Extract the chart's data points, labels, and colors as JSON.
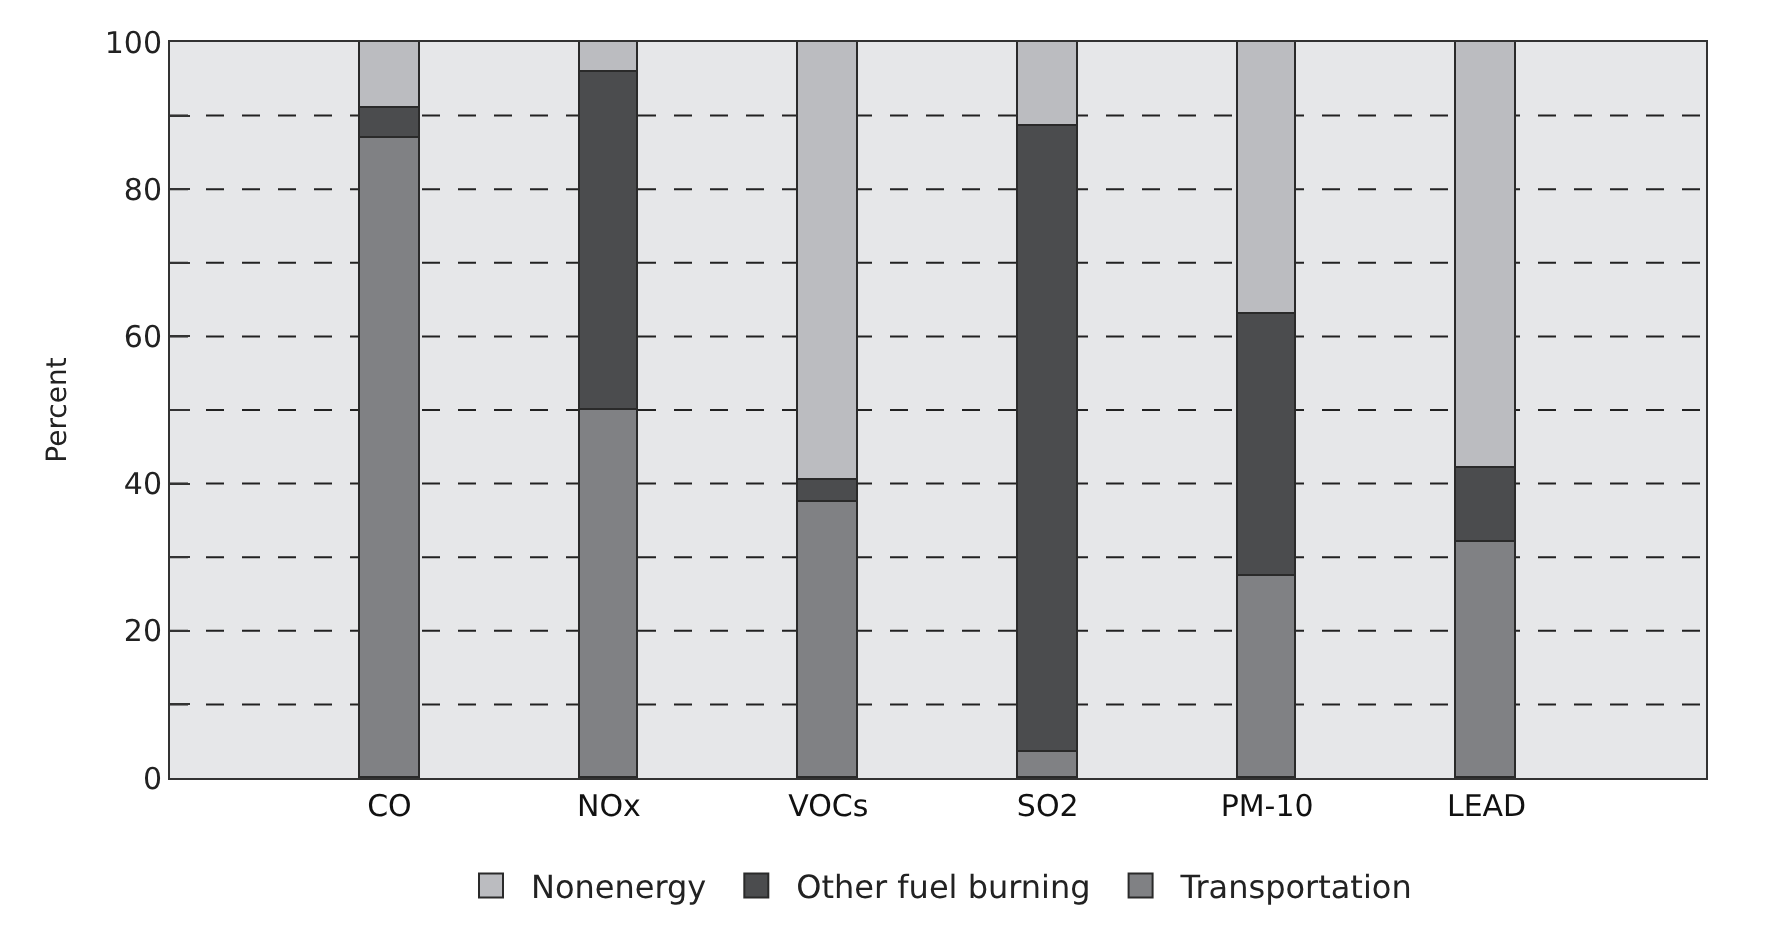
{
  "chart_data": {
    "type": "bar",
    "stacked": true,
    "ylabel": "Percent",
    "categories": [
      "CO",
      "NOx",
      "VOCs",
      "SO2",
      "PM-10",
      "LEAD"
    ],
    "series": [
      {
        "name": "Transportation",
        "color": "#808184",
        "values": [
          87,
          50,
          37.5,
          3.5,
          27.5,
          32
        ]
      },
      {
        "name": "Other fuel burning",
        "color": "#4b4c4e",
        "values": [
          4,
          46,
          3,
          85,
          35.5,
          10
        ]
      },
      {
        "name": "Nonenergy",
        "color": "#bbbcc0",
        "values": [
          9,
          4,
          59.5,
          11.5,
          37,
          58
        ]
      }
    ],
    "ylim": [
      0,
      100
    ],
    "yticks": [
      0,
      {
        "value": 10,
        "label": null
      },
      20,
      {
        "value": 30,
        "label": null
      },
      40,
      {
        "value": 50,
        "label": null
      },
      60,
      {
        "value": 70,
        "label": null
      },
      80,
      {
        "value": 90,
        "label": null
      },
      100
    ],
    "grid": "y",
    "legend": "bottom"
  }
}
